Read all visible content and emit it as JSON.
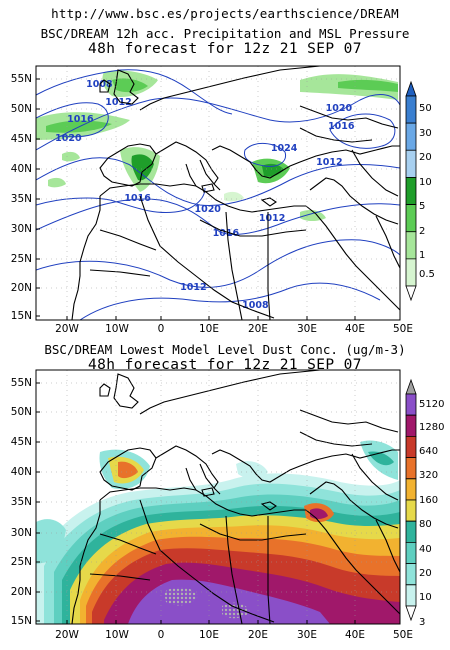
{
  "header": {
    "url": "http://www.bsc.es/projects/earthscience/DREAM"
  },
  "panels": [
    {
      "id": "precip",
      "title": "BSC/DREAM 12h acc. Precipitation and MSL Pressure",
      "subtitle": "48h forecast for 12z 21 SEP 07",
      "lat_ticks": [
        "55N",
        "50N",
        "45N",
        "40N",
        "35N",
        "30N",
        "25N",
        "20N",
        "15N"
      ],
      "lon_ticks": [
        "20W",
        "10W",
        "0",
        "10E",
        "20E",
        "30E",
        "40E",
        "50E"
      ],
      "colorbar": {
        "levels": [
          "0.5",
          "1",
          "2",
          "5",
          "10",
          "20",
          "30",
          "50"
        ],
        "colors": [
          "#d6f5d0",
          "#a6e69a",
          "#5ccc55",
          "#1f9e2a",
          "#a8d0f0",
          "#6aa8e6",
          "#3a7fd0",
          "#1f5fbf"
        ]
      },
      "isobar_labels": [
        {
          "text": "1008",
          "lon": -13,
          "lat": 53.7
        },
        {
          "text": "1012",
          "lon": -9,
          "lat": 50.7
        },
        {
          "text": "1016",
          "lon": -17,
          "lat": 47.8
        },
        {
          "text": "1020",
          "lon": -19.5,
          "lat": 44.7
        },
        {
          "text": "1016",
          "lon": -5,
          "lat": 34.7
        },
        {
          "text": "1020",
          "lon": 9.7,
          "lat": 32.8
        },
        {
          "text": "1016",
          "lon": 13.5,
          "lat": 28.8
        },
        {
          "text": "1012",
          "lon": 6.7,
          "lat": 19.8
        },
        {
          "text": "1008",
          "lon": 19.7,
          "lat": 16.8
        },
        {
          "text": "1012",
          "lon": 23.2,
          "lat": 31.3
        },
        {
          "text": "1020",
          "lon": 37.2,
          "lat": 49.7
        },
        {
          "text": "1016",
          "lon": 37.7,
          "lat": 46.7
        },
        {
          "text": "1024",
          "lon": 25.7,
          "lat": 43.0
        },
        {
          "text": "1012",
          "lon": 35.2,
          "lat": 40.7
        }
      ]
    },
    {
      "id": "dust",
      "title": "BSC/DREAM Lowest Model Level Dust Conc. (ug/m-3)",
      "subtitle": "48h forecast for 12z 21 SEP 07",
      "lat_ticks": [
        "55N",
        "50N",
        "45N",
        "40N",
        "35N",
        "30N",
        "25N",
        "20N",
        "15N"
      ],
      "lon_ticks": [
        "20W",
        "10W",
        "0",
        "10E",
        "20E",
        "30E",
        "40E",
        "50E"
      ],
      "colorbar": {
        "levels": [
          "3",
          "10",
          "20",
          "40",
          "80",
          "160",
          "320",
          "640",
          "1280",
          "5120"
        ],
        "colors": [
          "#c8f2ee",
          "#8fe3da",
          "#5ecfc0",
          "#2fb39c",
          "#e6d94a",
          "#f2b230",
          "#e8722a",
          "#c83a2a",
          "#a0186a",
          "#8a4fc8",
          "#a0a0a0"
        ]
      }
    }
  ]
}
